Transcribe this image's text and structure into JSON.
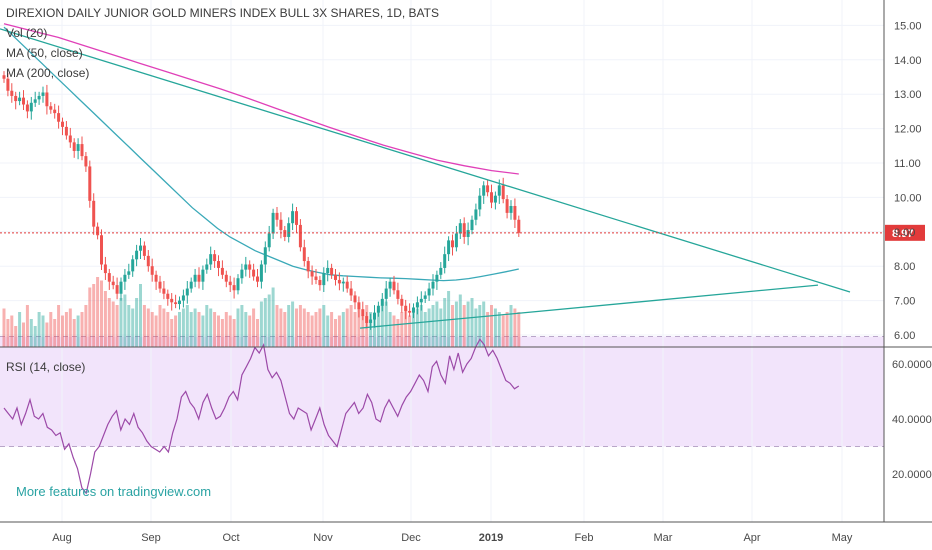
{
  "header": {
    "title": "DIREXION DAILY JUNIOR GOLD MINERS INDEX BULL 3X SHARES, 1D, BATS",
    "studies": [
      "Vol (20)",
      "MA (50, close)",
      "MA (200, close)"
    ]
  },
  "rsi_label": "RSI (14, close)",
  "watermark": "More features on tradingview.com",
  "colors": {
    "up": "#26a69a",
    "down": "#ef5350",
    "ma50": "#3aa9b8",
    "ma200": "#e040b8",
    "trend": "#26a69a",
    "rsi": "#9c4aa8",
    "rsi_band": "#f2e4fb",
    "price_line": "#e23b3b"
  },
  "chart_data": [
    {
      "type": "candlestick",
      "title": "DIREXION DAILY JUNIOR GOLD MINERS INDEX BULL 3X SHARES, 1D, BATS",
      "x_tick_labels": [
        "Aug",
        "Sep",
        "Oct",
        "Nov",
        "Dec",
        "2019",
        "Feb",
        "Mar",
        "Apr",
        "May"
      ],
      "y_tick_labels": [
        "6.00",
        "7.00",
        "8.00",
        "9.00",
        "10.00",
        "11.00",
        "12.00",
        "13.00",
        "14.00",
        "15.00"
      ],
      "ylim": [
        5.6,
        15.4
      ],
      "last_price": 8.97,
      "last_price_label": "8.97",
      "close": [
        13.45,
        13.1,
        12.95,
        12.8,
        12.9,
        12.7,
        12.5,
        12.75,
        12.85,
        12.95,
        13.05,
        12.65,
        12.55,
        12.45,
        12.2,
        12.05,
        11.8,
        11.6,
        11.35,
        11.55,
        11.2,
        10.9,
        9.9,
        9.15,
        8.9,
        8.05,
        7.8,
        7.55,
        7.45,
        7.2,
        7.55,
        7.75,
        7.85,
        8.2,
        8.45,
        8.6,
        8.3,
        8.0,
        7.75,
        7.55,
        7.35,
        7.2,
        7.05,
        6.95,
        6.9,
        7.0,
        7.15,
        7.35,
        7.55,
        7.75,
        7.55,
        7.9,
        8.05,
        8.35,
        8.15,
        7.95,
        7.75,
        7.55,
        7.45,
        7.3,
        7.65,
        7.9,
        8.05,
        7.9,
        7.7,
        7.55,
        8.05,
        8.55,
        8.95,
        9.55,
        9.35,
        9.05,
        8.85,
        9.25,
        9.6,
        9.2,
        8.55,
        8.15,
        7.85,
        7.7,
        7.6,
        7.45,
        7.8,
        7.95,
        7.75,
        7.6,
        7.5,
        7.55,
        7.35,
        7.15,
        6.95,
        6.75,
        6.55,
        6.35,
        6.45,
        6.65,
        6.85,
        7.05,
        7.35,
        7.55,
        7.3,
        7.05,
        6.85,
        6.7,
        6.65,
        6.8,
        6.95,
        7.05,
        7.15,
        7.35,
        7.55,
        7.75,
        7.95,
        8.35,
        8.75,
        8.55,
        8.95,
        9.25,
        8.85,
        9.05,
        9.35,
        9.65,
        10.05,
        10.35,
        10.15,
        9.85,
        10.05,
        10.35,
        9.95,
        9.55,
        9.75,
        9.35,
        8.97
      ],
      "volume_relative": [
        0.55,
        0.4,
        0.45,
        0.3,
        0.5,
        0.35,
        0.6,
        0.4,
        0.3,
        0.5,
        0.45,
        0.35,
        0.5,
        0.4,
        0.6,
        0.45,
        0.5,
        0.55,
        0.4,
        0.45,
        0.5,
        0.6,
        0.85,
        0.9,
        1.0,
        0.95,
        0.8,
        0.7,
        0.65,
        0.6,
        0.7,
        0.75,
        0.6,
        0.55,
        0.7,
        0.9,
        0.6,
        0.55,
        0.5,
        0.45,
        0.6,
        0.55,
        0.5,
        0.4,
        0.45,
        0.5,
        0.55,
        0.6,
        0.5,
        0.55,
        0.5,
        0.45,
        0.6,
        0.55,
        0.5,
        0.45,
        0.4,
        0.5,
        0.45,
        0.4,
        0.55,
        0.6,
        0.5,
        0.45,
        0.55,
        0.4,
        0.65,
        0.7,
        0.75,
        0.85,
        0.6,
        0.55,
        0.5,
        0.6,
        0.65,
        0.55,
        0.6,
        0.55,
        0.5,
        0.45,
        0.5,
        0.55,
        0.6,
        0.45,
        0.5,
        0.4,
        0.45,
        0.5,
        0.55,
        0.6,
        0.5,
        0.55,
        0.45,
        0.6,
        0.5,
        0.45,
        0.55,
        0.6,
        0.65,
        0.5,
        0.45,
        0.4,
        0.5,
        0.55,
        0.45,
        0.5,
        0.55,
        0.6,
        0.5,
        0.55,
        0.6,
        0.65,
        0.55,
        0.7,
        0.8,
        0.6,
        0.65,
        0.75,
        0.6,
        0.65,
        0.7,
        0.55,
        0.6,
        0.65,
        0.5,
        0.6,
        0.55,
        0.5,
        0.45,
        0.5,
        0.6,
        0.55,
        0.5
      ],
      "ma50": [
        14.95,
        14.6,
        14.25,
        13.9,
        13.55,
        13.2,
        12.85,
        12.5,
        12.15,
        11.8,
        11.45,
        11.1,
        10.75,
        10.4,
        10.05,
        9.7,
        9.4,
        9.1,
        8.85,
        8.65,
        8.45,
        8.3,
        8.15,
        8.0,
        7.9,
        7.82,
        7.75,
        7.72,
        7.7,
        7.68,
        7.66,
        7.65,
        7.64,
        7.62,
        7.6,
        7.58,
        7.6,
        7.64,
        7.7,
        7.77,
        7.84,
        7.92
      ],
      "ma200": [
        15.05,
        14.85,
        14.65,
        14.4,
        14.15,
        13.9,
        13.65,
        13.4,
        13.15,
        12.88,
        12.6,
        12.32,
        12.04,
        11.78,
        11.52,
        11.3,
        11.08,
        10.92,
        10.78,
        10.68
      ],
      "trendlines": [
        {
          "from": [
            12.6,
            14.9
          ],
          "to": [
            9.4,
            7.25
          ]
        },
        {
          "from": [
            10.0,
            6.2
          ],
          "to": [
            12.8,
            7.45
          ]
        }
      ]
    },
    {
      "type": "line",
      "title": "RSI (14, close)",
      "y_tick_labels": [
        "20.0000",
        "40.0000",
        "60.0000"
      ],
      "ylim": [
        8,
        75
      ],
      "band": [
        30,
        70
      ],
      "values": [
        44,
        42,
        40,
        44,
        38,
        42,
        47,
        41,
        40,
        42,
        37,
        36,
        34,
        35,
        29,
        31,
        26,
        22,
        15,
        13,
        20,
        28,
        30,
        34,
        38,
        41,
        43,
        36,
        40,
        38,
        42,
        37,
        35,
        32,
        30,
        29,
        28,
        30,
        28,
        35,
        40,
        48,
        50,
        46,
        44,
        40,
        46,
        49,
        44,
        40,
        41,
        44,
        48,
        50,
        47,
        56,
        59,
        62,
        66,
        64,
        67,
        58,
        55,
        57,
        54,
        48,
        42,
        40,
        44,
        43,
        42,
        36,
        40,
        44,
        38,
        34,
        32,
        30,
        36,
        42,
        44,
        46,
        42,
        44,
        49,
        46,
        40,
        39,
        44,
        47,
        44,
        41,
        45,
        48,
        50,
        53,
        56,
        54,
        50,
        59,
        61,
        56,
        53,
        63,
        58,
        64,
        57,
        60,
        62,
        66,
        69,
        67,
        63,
        65,
        62,
        58,
        54,
        53,
        51,
        52
      ]
    }
  ]
}
